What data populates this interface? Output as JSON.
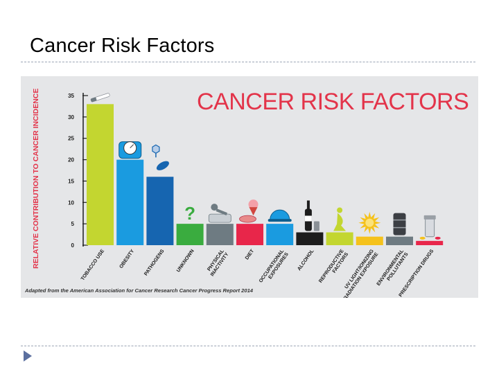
{
  "slide": {
    "title": "Cancer Risk Factors"
  },
  "chart_data": {
    "type": "bar",
    "title": "CANCER RISK FACTORS",
    "ylabel": "RELATIVE CONTRIBUTION TO CANCER INCIDENCE",
    "xlabel": "",
    "ylim": [
      0,
      35
    ],
    "yticks": [
      0,
      5,
      10,
      15,
      20,
      25,
      30,
      35
    ],
    "grid": false,
    "categories": [
      "TOBACCO USE",
      "OBESITY",
      "PATHOGENS",
      "UNKNOWN",
      "PHYSICAL INACTIVITY",
      "DIET",
      "OCCUPATIONAL EXPOSURES",
      "ALCOHOL",
      "REPRODUCTIVE FACTORS",
      "UV LIGHT/IONIZING RADIATION EXPOSURE",
      "ENVIRONMENTAL POLLUTANTS",
      "PRESCRIPTION DRUGS"
    ],
    "values": [
      33,
      20,
      16,
      5,
      5,
      5,
      5,
      3,
      3,
      2,
      2,
      1
    ],
    "colors": [
      "#c3d630",
      "#1a9be0",
      "#1665b0",
      "#3aac3f",
      "#6e7b82",
      "#e8264a",
      "#1a9be0",
      "#1d1d1d",
      "#c3d630",
      "#f5c21c",
      "#6e7b82",
      "#e8264a"
    ],
    "icons": [
      "cigarette-icon",
      "scale-icon",
      "virus-bacteria-icon",
      "question-mark-icon",
      "couch-potato-icon",
      "burger-icecream-icon",
      "hard-hat-icon",
      "wine-bottle-icon",
      "pregnant-figure-icon",
      "sun-burst-icon",
      "oil-barrel-icon",
      "pill-bottle-icon"
    ],
    "source": "Adapted from the American Association for Cancer Research Cancer Progress Report 2014"
  }
}
